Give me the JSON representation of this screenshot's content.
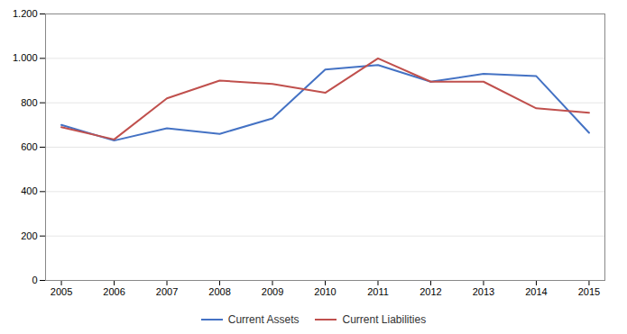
{
  "chart_data": {
    "type": "line",
    "x": [
      2005,
      2006,
      2007,
      2008,
      2009,
      2010,
      2011,
      2012,
      2013,
      2014,
      2015
    ],
    "series": [
      {
        "name": "Current Assets",
        "color": "#4472C4",
        "values": [
          700,
          630,
          685,
          660,
          730,
          950,
          970,
          895,
          930,
          920,
          665
        ]
      },
      {
        "name": "Current Liabilities",
        "color": "#C0504D",
        "values": [
          690,
          635,
          820,
          900,
          885,
          845,
          1000,
          895,
          895,
          775,
          755
        ]
      }
    ],
    "xlim": [
      2004.7,
      2015.3
    ],
    "xticks": [
      2005,
      2006,
      2007,
      2008,
      2009,
      2010,
      2011,
      2012,
      2013,
      2014,
      2015
    ],
    "ylim": [
      0,
      1200
    ],
    "yticks": [
      0,
      200,
      400,
      600,
      800,
      {
        "value": 1000,
        "label": "1.000"
      },
      {
        "value": 1200,
        "label": "1.200"
      }
    ],
    "grid": true,
    "legend": "bottom"
  }
}
